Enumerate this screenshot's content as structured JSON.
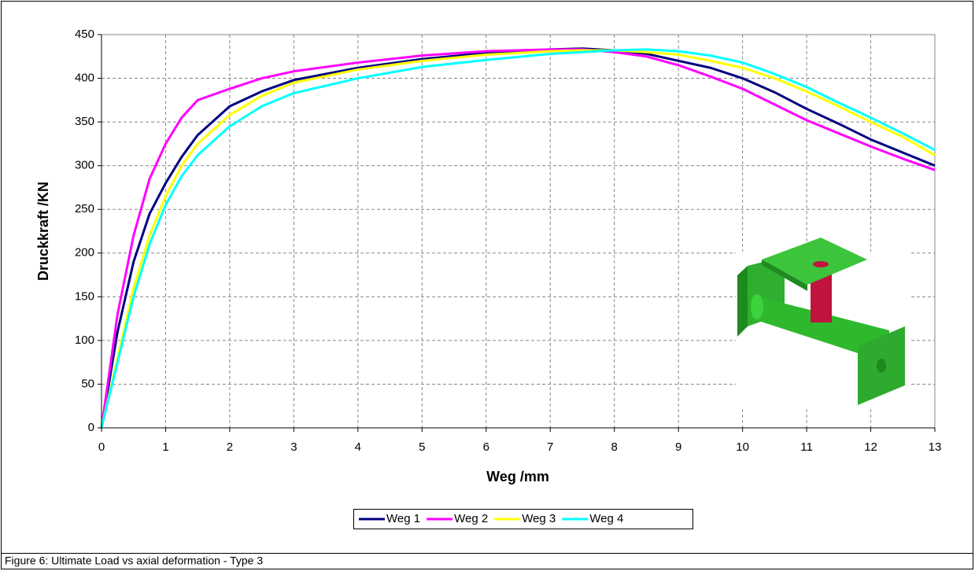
{
  "chart_data": {
    "type": "line",
    "x_label": "Weg  /mm",
    "y_label": "Druckkraft  /KN",
    "x": [
      0,
      0.25,
      0.5,
      0.75,
      1,
      1.25,
      1.5,
      2,
      2.5,
      3,
      4,
      5,
      6,
      7,
      7.5,
      8,
      8.5,
      9,
      9.5,
      10,
      10.5,
      11,
      11.5,
      12,
      12.5,
      13
    ],
    "series": [
      {
        "name": "Weg 1",
        "color": "#000080",
        "values": [
          0,
          110,
          190,
          245,
          280,
          310,
          335,
          368,
          385,
          398,
          412,
          422,
          429,
          433,
          434,
          432,
          428,
          420,
          412,
          400,
          384,
          365,
          348,
          330,
          315,
          300
        ]
      },
      {
        "name": "Weg 2",
        "color": "#ff00ff",
        "values": [
          0,
          130,
          220,
          285,
          325,
          355,
          375,
          388,
          400,
          408,
          418,
          426,
          431,
          433,
          433,
          430,
          425,
          415,
          402,
          388,
          370,
          352,
          337,
          322,
          308,
          295
        ]
      },
      {
        "name": "Weg 3",
        "color": "#ffff00",
        "values": [
          0,
          80,
          160,
          220,
          265,
          300,
          325,
          358,
          380,
          395,
          410,
          420,
          427,
          431,
          432,
          432,
          430,
          427,
          420,
          412,
          400,
          385,
          368,
          350,
          333,
          312
        ]
      },
      {
        "name": "Weg 4",
        "color": "#00ffff",
        "values": [
          0,
          75,
          150,
          210,
          255,
          288,
          312,
          345,
          368,
          383,
          400,
          413,
          421,
          428,
          430,
          432,
          433,
          431,
          426,
          418,
          405,
          390,
          372,
          355,
          337,
          318
        ]
      }
    ],
    "xlim": [
      0,
      13
    ],
    "xticks": [
      0,
      1,
      2,
      3,
      4,
      5,
      6,
      7,
      8,
      9,
      10,
      11,
      12,
      13
    ],
    "ylim": [
      0,
      450
    ],
    "yticks": [
      0,
      50,
      100,
      150,
      200,
      250,
      300,
      350,
      400,
      450
    ],
    "grid": true,
    "legend": "bottom"
  },
  "caption": "Figure 6:  Ultimate Load vs axial deformation  - Type 3"
}
